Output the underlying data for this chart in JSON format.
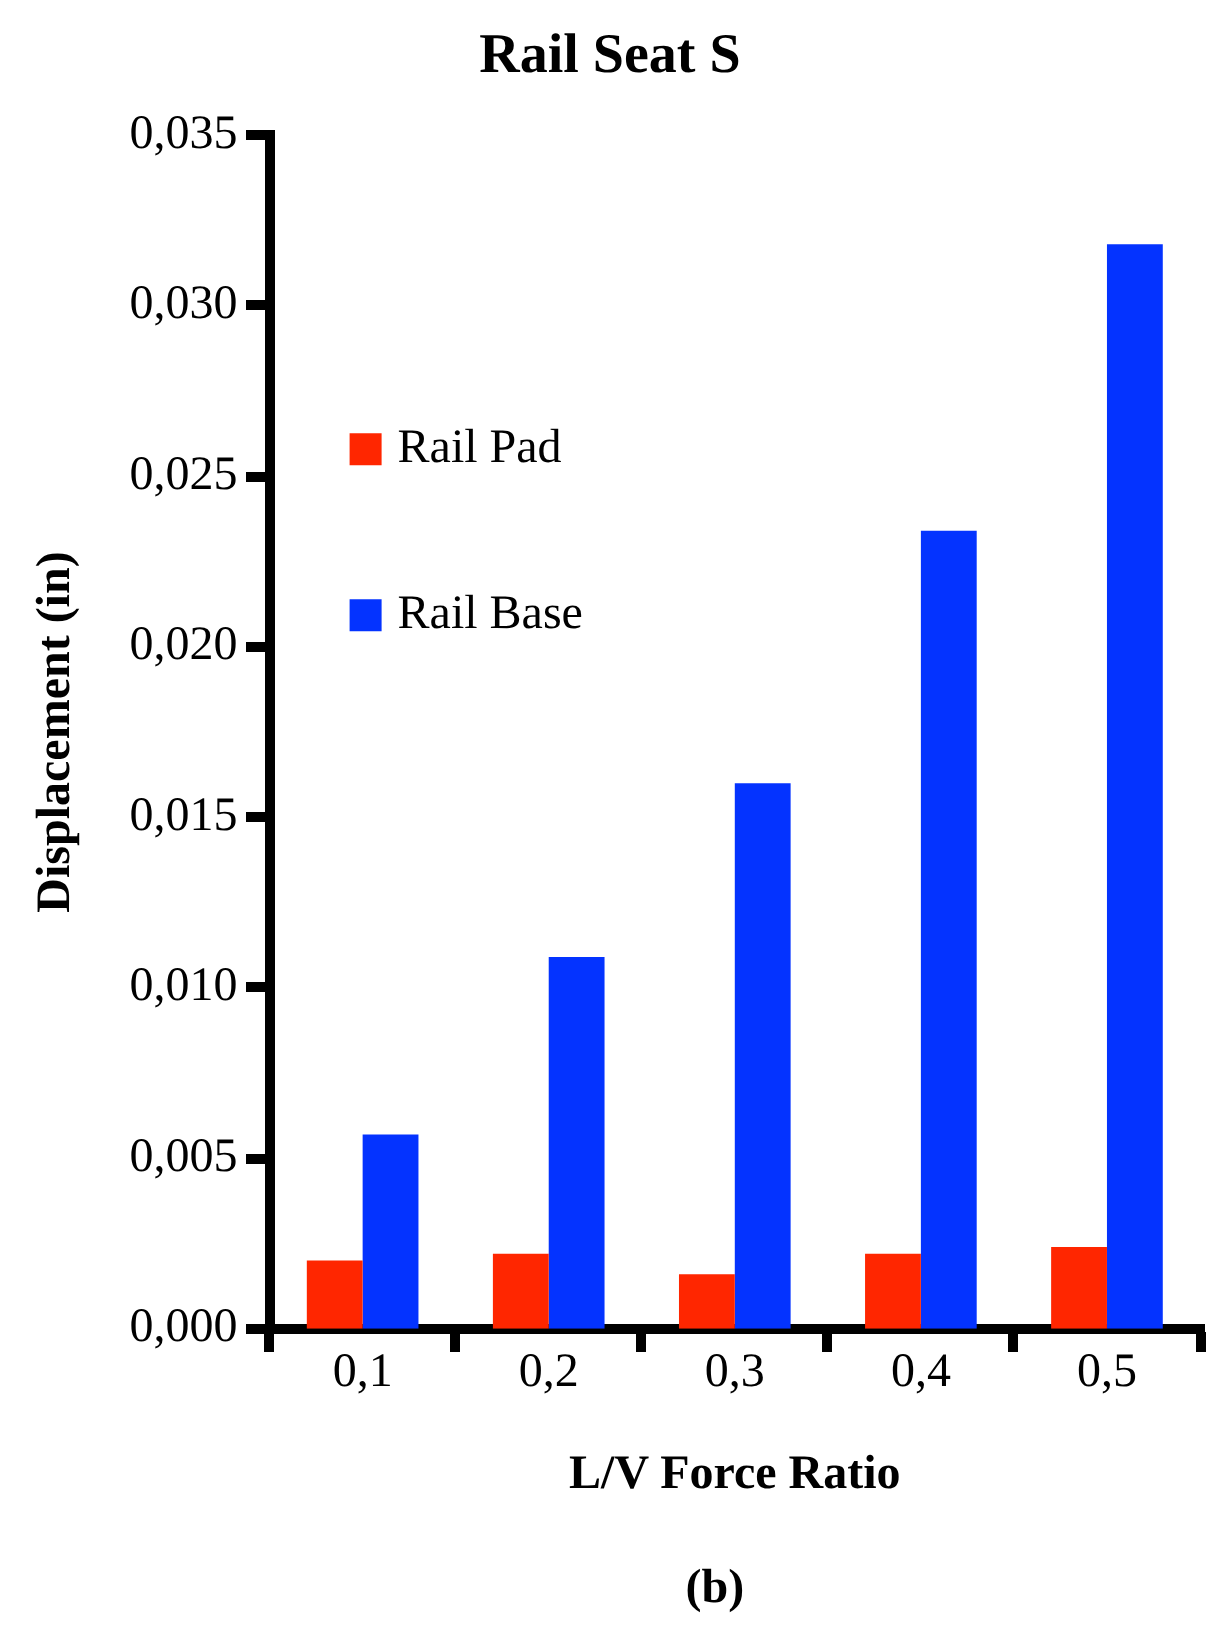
{
  "chart_data": {
    "type": "bar",
    "title": "Rail Seat S",
    "xlabel": "L/V Force Ratio",
    "ylabel": "Displacement (in)",
    "annotations": [
      "(b)"
    ],
    "categories": [
      "0,1",
      "0,2",
      "0,3",
      "0,4",
      "0,5"
    ],
    "series": [
      {
        "name": "Rail Pad",
        "color": "#ff2600",
        "values": [
          0.002,
          0.0022,
          0.0016,
          0.0022,
          0.0024
        ]
      },
      {
        "name": "Rail Base",
        "color": "#0433ff",
        "values": [
          0.0057,
          0.0109,
          0.016,
          0.0234,
          0.0318
        ]
      }
    ],
    "ylim": [
      0,
      0.035
    ],
    "yticks": [
      {
        "value": 0,
        "label": "0,000"
      },
      {
        "value": 0.005,
        "label": "0,005"
      },
      {
        "value": 0.01,
        "label": "0,010"
      },
      {
        "value": 0.015,
        "label": "0,015"
      },
      {
        "value": 0.02,
        "label": "0,020"
      },
      {
        "value": 0.025,
        "label": "0,025"
      },
      {
        "value": 0.03,
        "label": "0,030"
      },
      {
        "value": 0.035,
        "label": "0,035"
      }
    ],
    "grid": false,
    "legend": "top left"
  }
}
